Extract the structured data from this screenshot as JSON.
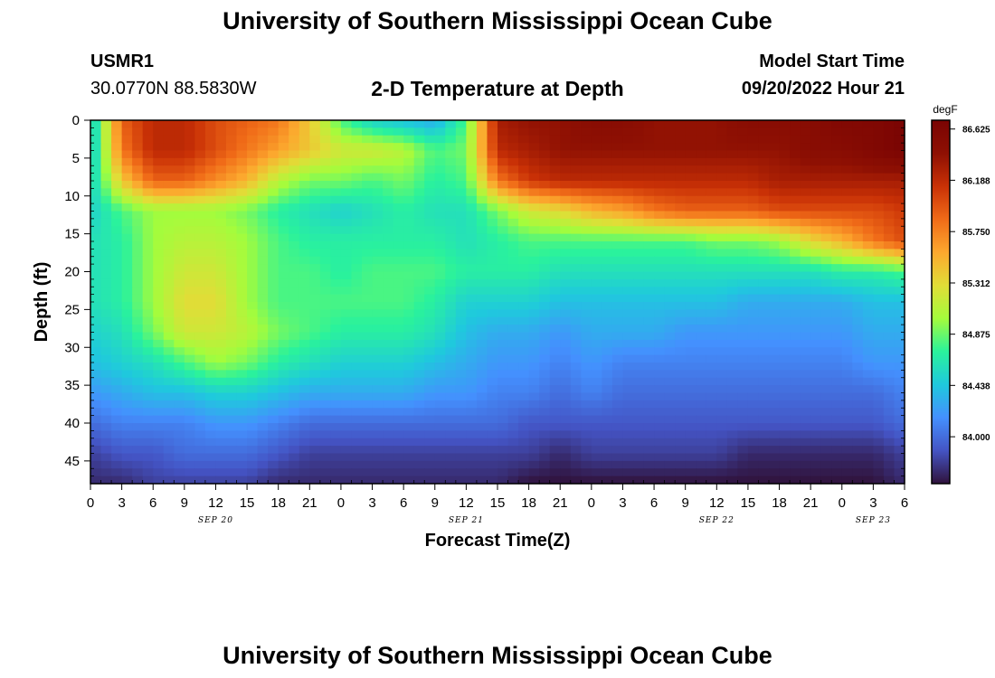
{
  "header": {
    "title_top": "University of Southern Mississippi Ocean Cube",
    "station_id": "USMR1",
    "station_coords": "30.0770N  88.5830W",
    "chart_title": "2-D Temperature at Depth",
    "model_start_label": "Model Start Time",
    "model_start_value": "09/20/2022 Hour 21",
    "title_bottom": "University of Southern Mississippi Ocean Cube"
  },
  "chart_data": {
    "type": "heatmap",
    "title": "2-D Temperature at Depth",
    "xlabel": "Forecast Time(Z)",
    "ylabel": "Depth (ft)",
    "x_tick_labels": [
      "0",
      "3",
      "6",
      "9",
      "12",
      "15",
      "18",
      "21",
      "0",
      "3",
      "6",
      "9",
      "12",
      "15",
      "18",
      "21",
      "0",
      "3",
      "6",
      "9",
      "12",
      "15",
      "18",
      "21",
      "0",
      "3",
      "6"
    ],
    "x_range_hours": [
      0,
      78
    ],
    "day_labels": [
      {
        "label": "SEP 20",
        "hour": 12
      },
      {
        "label": "SEP 21",
        "hour": 36
      },
      {
        "label": "SEP 22",
        "hour": 60
      },
      {
        "label": "SEP 23",
        "hour": 75
      }
    ],
    "y_tick_labels": [
      "0",
      "5",
      "10",
      "15",
      "20",
      "25",
      "30",
      "35",
      "40",
      "45"
    ],
    "y_range_ft": [
      0,
      48
    ],
    "colorbar": {
      "unit": "degF",
      "range": [
        83.6,
        86.7
      ],
      "tick_labels": [
        "86.625",
        "86.188",
        "85.750",
        "85.312",
        "84.875",
        "84.438",
        "84.000"
      ],
      "colors": [
        "#30123b",
        "#4454c4",
        "#4490fe",
        "#1fc9dd",
        "#2af29c",
        "#a4fc3c",
        "#e1dd37",
        "#fca82e",
        "#f06b18",
        "#c93106",
        "#8e1003",
        "#7a0403"
      ]
    },
    "grid": false,
    "legend_position": "right",
    "columns_hours": [
      0,
      3,
      6,
      9,
      12,
      15,
      18,
      21,
      24,
      27,
      30,
      33,
      36,
      39,
      42,
      45,
      48,
      51,
      54,
      57,
      60,
      63,
      66,
      69,
      72,
      75,
      78
    ],
    "rows_depth_ft": [
      0,
      4,
      8,
      12,
      16,
      20,
      24,
      28,
      32,
      36,
      40,
      44,
      48
    ],
    "values_degF": [
      [
        84.4,
        85.9,
        86.2,
        86.2,
        86.0,
        85.9,
        85.8,
        85.4,
        84.8,
        84.5,
        84.4,
        84.3,
        84.8,
        86.3,
        86.4,
        86.4,
        86.5,
        86.5,
        86.4,
        86.4,
        86.4,
        86.5,
        86.5,
        86.5,
        86.6,
        86.6,
        86.7
      ],
      [
        84.4,
        85.8,
        86.2,
        86.2,
        86.0,
        85.8,
        85.6,
        85.4,
        85.2,
        85.2,
        85.1,
        84.8,
        84.9,
        86.2,
        86.3,
        86.4,
        86.4,
        86.4,
        86.4,
        86.4,
        86.4,
        86.4,
        86.4,
        86.5,
        86.5,
        86.6,
        86.7
      ],
      [
        84.5,
        85.4,
        85.9,
        85.9,
        85.7,
        85.5,
        85.1,
        84.9,
        84.9,
        84.8,
        84.9,
        84.7,
        84.8,
        85.8,
        86.1,
        86.2,
        86.2,
        86.2,
        86.2,
        86.2,
        86.2,
        86.2,
        86.3,
        86.3,
        86.3,
        86.3,
        86.3
      ],
      [
        84.5,
        84.8,
        85.0,
        85.0,
        85.0,
        84.9,
        84.7,
        84.6,
        84.5,
        84.6,
        84.7,
        84.6,
        84.6,
        84.9,
        85.2,
        85.3,
        85.5,
        85.6,
        85.8,
        85.9,
        85.9,
        85.9,
        86.0,
        86.0,
        86.0,
        86.0,
        86.1
      ],
      [
        84.6,
        84.7,
        85.0,
        85.1,
        85.1,
        85.0,
        84.8,
        84.7,
        84.7,
        84.7,
        84.7,
        84.7,
        84.6,
        84.7,
        84.8,
        84.8,
        84.8,
        84.8,
        84.8,
        84.8,
        84.9,
        84.9,
        85.0,
        85.3,
        85.5,
        85.8,
        86.0
      ],
      [
        84.6,
        84.7,
        85.0,
        85.2,
        85.2,
        85.0,
        84.8,
        84.8,
        84.7,
        84.8,
        84.8,
        84.8,
        84.7,
        84.7,
        84.7,
        84.6,
        84.6,
        84.6,
        84.6,
        84.6,
        84.6,
        84.6,
        84.6,
        84.6,
        84.7,
        84.7,
        84.8
      ],
      [
        84.6,
        84.7,
        85.0,
        85.3,
        85.3,
        85.0,
        84.8,
        84.8,
        84.8,
        84.8,
        84.8,
        84.7,
        84.5,
        84.5,
        84.5,
        84.4,
        84.4,
        84.4,
        84.4,
        84.4,
        84.4,
        84.3,
        84.3,
        84.3,
        84.3,
        84.4,
        84.4
      ],
      [
        84.5,
        84.6,
        84.9,
        85.2,
        85.2,
        85.1,
        84.9,
        84.8,
        84.7,
        84.7,
        84.7,
        84.6,
        84.4,
        84.3,
        84.3,
        84.2,
        84.3,
        84.3,
        84.3,
        84.2,
        84.2,
        84.2,
        84.2,
        84.2,
        84.2,
        84.3,
        84.3
      ],
      [
        84.4,
        84.5,
        84.6,
        84.8,
        85.0,
        84.9,
        84.7,
        84.6,
        84.5,
        84.5,
        84.5,
        84.4,
        84.3,
        84.2,
        84.2,
        84.1,
        84.2,
        84.1,
        84.1,
        84.1,
        84.1,
        84.1,
        84.1,
        84.1,
        84.1,
        84.2,
        84.2
      ],
      [
        84.2,
        84.3,
        84.4,
        84.4,
        84.5,
        84.5,
        84.4,
        84.3,
        84.3,
        84.3,
        84.3,
        84.2,
        84.2,
        84.1,
        84.1,
        84.0,
        84.1,
        84.0,
        84.0,
        84.0,
        84.0,
        84.0,
        84.0,
        84.0,
        84.0,
        84.0,
        84.1
      ],
      [
        84.0,
        84.1,
        84.1,
        84.1,
        84.2,
        84.2,
        84.1,
        84.0,
        84.0,
        84.0,
        84.0,
        84.0,
        84.0,
        84.0,
        83.9,
        83.9,
        83.9,
        83.9,
        83.9,
        83.9,
        83.9,
        83.9,
        83.9,
        83.9,
        83.9,
        83.9,
        84.0
      ],
      [
        83.8,
        83.9,
        83.9,
        84.0,
        84.0,
        84.0,
        83.9,
        83.8,
        83.8,
        83.8,
        83.8,
        83.8,
        83.8,
        83.8,
        83.8,
        83.7,
        83.8,
        83.8,
        83.8,
        83.8,
        83.8,
        83.7,
        83.7,
        83.7,
        83.7,
        83.7,
        83.8
      ],
      [
        83.7,
        83.7,
        83.8,
        83.8,
        83.8,
        83.8,
        83.7,
        83.7,
        83.7,
        83.7,
        83.7,
        83.7,
        83.7,
        83.7,
        83.6,
        83.6,
        83.6,
        83.6,
        83.6,
        83.6,
        83.6,
        83.6,
        83.6,
        83.6,
        83.6,
        83.6,
        83.7
      ]
    ]
  }
}
